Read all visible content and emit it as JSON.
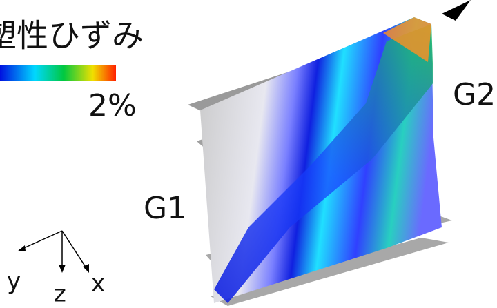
{
  "legend": {
    "title": "塑性ひずみ",
    "max_label": "2%"
  },
  "labels": {
    "girder1": "G1",
    "girder2": "G2"
  },
  "axes": {
    "y": "y",
    "z": "z",
    "x": "x"
  }
}
